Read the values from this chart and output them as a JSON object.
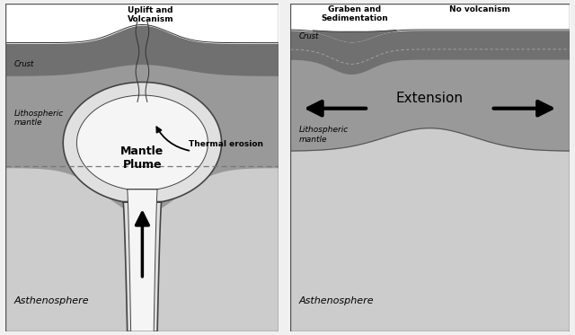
{
  "bg_color": "#f0f0f0",
  "left_panel": {
    "asthenosphere_color": "#cccccc",
    "lithosphere_color": "#999999",
    "crust_color": "#707070",
    "plume_outer_color": "#e0e0e0",
    "plume_inner_color": "#f5f5f5",
    "plume_outline_color": "#444444",
    "dashed_line_color": "#777777",
    "labels": {
      "uplift": "Uplift and\nVolcanism",
      "crust": "Crust",
      "litho_mantle": "Lithospheric\nmantle",
      "thermal": "Thermal erosion",
      "mantle_plume": "Mantle\nPlume",
      "asthenosphere": "Asthenosphere"
    }
  },
  "right_panel": {
    "asthenosphere_color": "#cccccc",
    "lithosphere_color": "#999999",
    "crust_color": "#707070",
    "labels": {
      "graben": "Graben and\nSedimentation",
      "no_volc": "No volcanism",
      "crust": "Crust",
      "extension": "Extension",
      "litho_mantle": "Lithospheric\nmantle",
      "asthenosphere": "Asthenosphere"
    }
  }
}
